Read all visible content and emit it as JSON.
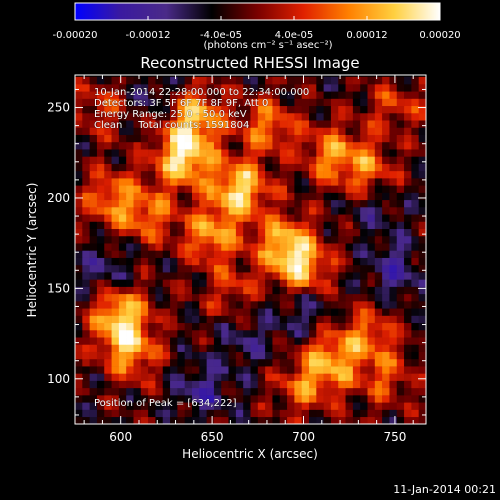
{
  "chart_data": {
    "type": "heatmap",
    "title": "Reconstructed RHESSI Image",
    "xlabel": "Heliocentric X (arcsec)",
    "ylabel": "Heliocentric Y (arcsec)",
    "xlim": [
      575,
      767
    ],
    "ylim": [
      75,
      268
    ],
    "xticks": [
      "600",
      "650",
      "700",
      "750"
    ],
    "xtick_values": [
      600,
      650,
      700,
      750
    ],
    "yticks": [
      "100",
      "150",
      "200",
      "250"
    ],
    "ytick_values": [
      100,
      150,
      200,
      250
    ],
    "colorbar": {
      "tick_labels": [
        "-0.00020",
        "-0.00012",
        "-4.0e-05",
        "4.0e-05",
        "0.00012",
        "0.00020"
      ],
      "tick_values": [
        -0.0002,
        -0.00012,
        -4e-05,
        4e-05,
        0.00012,
        0.0002
      ],
      "range": [
        -0.0002,
        0.0002
      ],
      "units": "(photons cm⁻² s⁻¹ asec⁻²)",
      "colors": [
        "#0000ff",
        "#3a1aa0",
        "#4a2a88",
        "#000000",
        "#7a0000",
        "#e02000",
        "#ff8000",
        "#ffd040",
        "#ffffff"
      ]
    },
    "annotations": {
      "time_range": "10-Jan-2014 22:28:00.000 to 22:34:00.000",
      "detectors": "Detectors: 3F 5F 6F 7F 8F 9F, Att 0",
      "energy": "Energy Range: 25.0 - 50.0 keV",
      "clean": "Clean     Total counts: 1591804",
      "peak": "Position of Peak = [634,222]"
    },
    "peak_position": [
      634,
      222
    ],
    "sources": [
      {
        "x": 634,
        "y": 222,
        "flux": 0.0002
      },
      {
        "x": 640,
        "y": 245,
        "flux": 0.00017
      },
      {
        "x": 665,
        "y": 205,
        "flux": 0.00019
      },
      {
        "x": 690,
        "y": 175,
        "flux": 0.00016
      },
      {
        "x": 700,
        "y": 160,
        "flux": 0.00015
      },
      {
        "x": 650,
        "y": 180,
        "flux": 0.00014
      },
      {
        "x": 600,
        "y": 135,
        "flux": 0.00018
      },
      {
        "x": 605,
        "y": 115,
        "flux": 0.00014
      },
      {
        "x": 595,
        "y": 200,
        "flux": 0.00012
      },
      {
        "x": 615,
        "y": 190,
        "flux": 0.00011
      },
      {
        "x": 715,
        "y": 225,
        "flux": 0.00013
      },
      {
        "x": 735,
        "y": 215,
        "flux": 0.00011
      },
      {
        "x": 680,
        "y": 240,
        "flux": 0.00012
      },
      {
        "x": 715,
        "y": 110,
        "flux": 0.00014
      },
      {
        "x": 735,
        "y": 125,
        "flux": 0.00011
      },
      {
        "x": 700,
        "y": 95,
        "flux": 0.0001
      },
      {
        "x": 745,
        "y": 100,
        "flux": 9e-05
      },
      {
        "x": 590,
        "y": 250,
        "flux": 8e-05
      },
      {
        "x": 750,
        "y": 250,
        "flux": 8e-05
      },
      {
        "x": 660,
        "y": 150,
        "flux": 7e-05
      },
      {
        "x": 645,
        "y": 95,
        "flux": -8e-05
      },
      {
        "x": 700,
        "y": 140,
        "flux": -7e-05
      },
      {
        "x": 750,
        "y": 160,
        "flux": -8e-05
      },
      {
        "x": 590,
        "y": 160,
        "flux": -6e-05
      },
      {
        "x": 620,
        "y": 255,
        "flux": -6e-05
      },
      {
        "x": 740,
        "y": 195,
        "flux": -5e-05
      },
      {
        "x": 670,
        "y": 120,
        "flux": -5e-05
      }
    ]
  },
  "footer": {
    "date": "11-Jan-2014 00:21"
  }
}
